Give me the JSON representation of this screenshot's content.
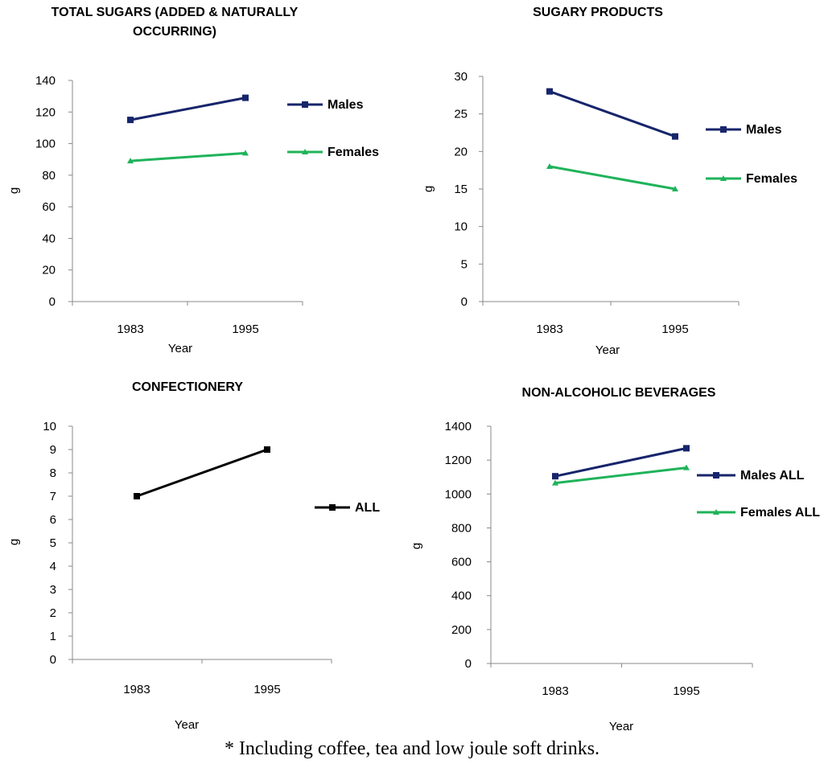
{
  "chart_data": [
    {
      "type": "line",
      "title": "TOTAL SUGARS (ADDED & NATURALLY OCCURRING)",
      "title_lines": [
        "TOTAL SUGARS (ADDED & NATURALLY",
        "OCCURRING)"
      ],
      "xlabel": "Year",
      "ylabel": "g",
      "categories": [
        "1983",
        "1995"
      ],
      "ylim": [
        0,
        140
      ],
      "yticks": [
        0,
        20,
        40,
        60,
        80,
        100,
        120,
        140
      ],
      "series": [
        {
          "name": "Males",
          "values": [
            115,
            129
          ],
          "color": "#17256b",
          "marker": "square"
        },
        {
          "name": "Females",
          "values": [
            89,
            94
          ],
          "color": "#1fb35a",
          "marker": "triangle"
        }
      ]
    },
    {
      "type": "line",
      "title": "SUGARY PRODUCTS",
      "title_lines": [
        "SUGARY PRODUCTS"
      ],
      "xlabel": "Year",
      "ylabel": "g",
      "categories": [
        "1983",
        "1995"
      ],
      "ylim": [
        0,
        30
      ],
      "yticks": [
        0,
        5,
        10,
        15,
        20,
        25,
        30
      ],
      "series": [
        {
          "name": "Males",
          "values": [
            28,
            22
          ],
          "color": "#17256b",
          "marker": "square"
        },
        {
          "name": "Females",
          "values": [
            18,
            15
          ],
          "color": "#1fb35a",
          "marker": "triangle"
        }
      ]
    },
    {
      "type": "line",
      "title": "CONFECTIONERY",
      "title_lines": [
        "CONFECTIONERY"
      ],
      "xlabel": "Year",
      "ylabel": "g",
      "categories": [
        "1983",
        "1995"
      ],
      "ylim": [
        0,
        10
      ],
      "yticks": [
        0,
        1,
        2,
        3,
        4,
        5,
        6,
        7,
        8,
        9,
        10
      ],
      "series": [
        {
          "name": "ALL",
          "values": [
            7,
            9
          ],
          "color": "#000000",
          "marker": "square"
        }
      ]
    },
    {
      "type": "line",
      "title": "NON-ALCOHOLIC BEVERAGES",
      "title_lines": [
        "NON-ALCOHOLIC BEVERAGES"
      ],
      "xlabel": "Year",
      "ylabel": "g",
      "categories": [
        "1983",
        "1995"
      ],
      "ylim": [
        0,
        1400
      ],
      "yticks": [
        0,
        200,
        400,
        600,
        800,
        1000,
        1200,
        1400
      ],
      "series": [
        {
          "name": "Males ALL",
          "values": [
            1105,
            1270
          ],
          "color": "#17256b",
          "marker": "square"
        },
        {
          "name": "Females ALL",
          "values": [
            1065,
            1155
          ],
          "color": "#1fb35a",
          "marker": "triangle"
        }
      ]
    }
  ],
  "footnote": "* Including coffee, tea and low joule soft drinks."
}
